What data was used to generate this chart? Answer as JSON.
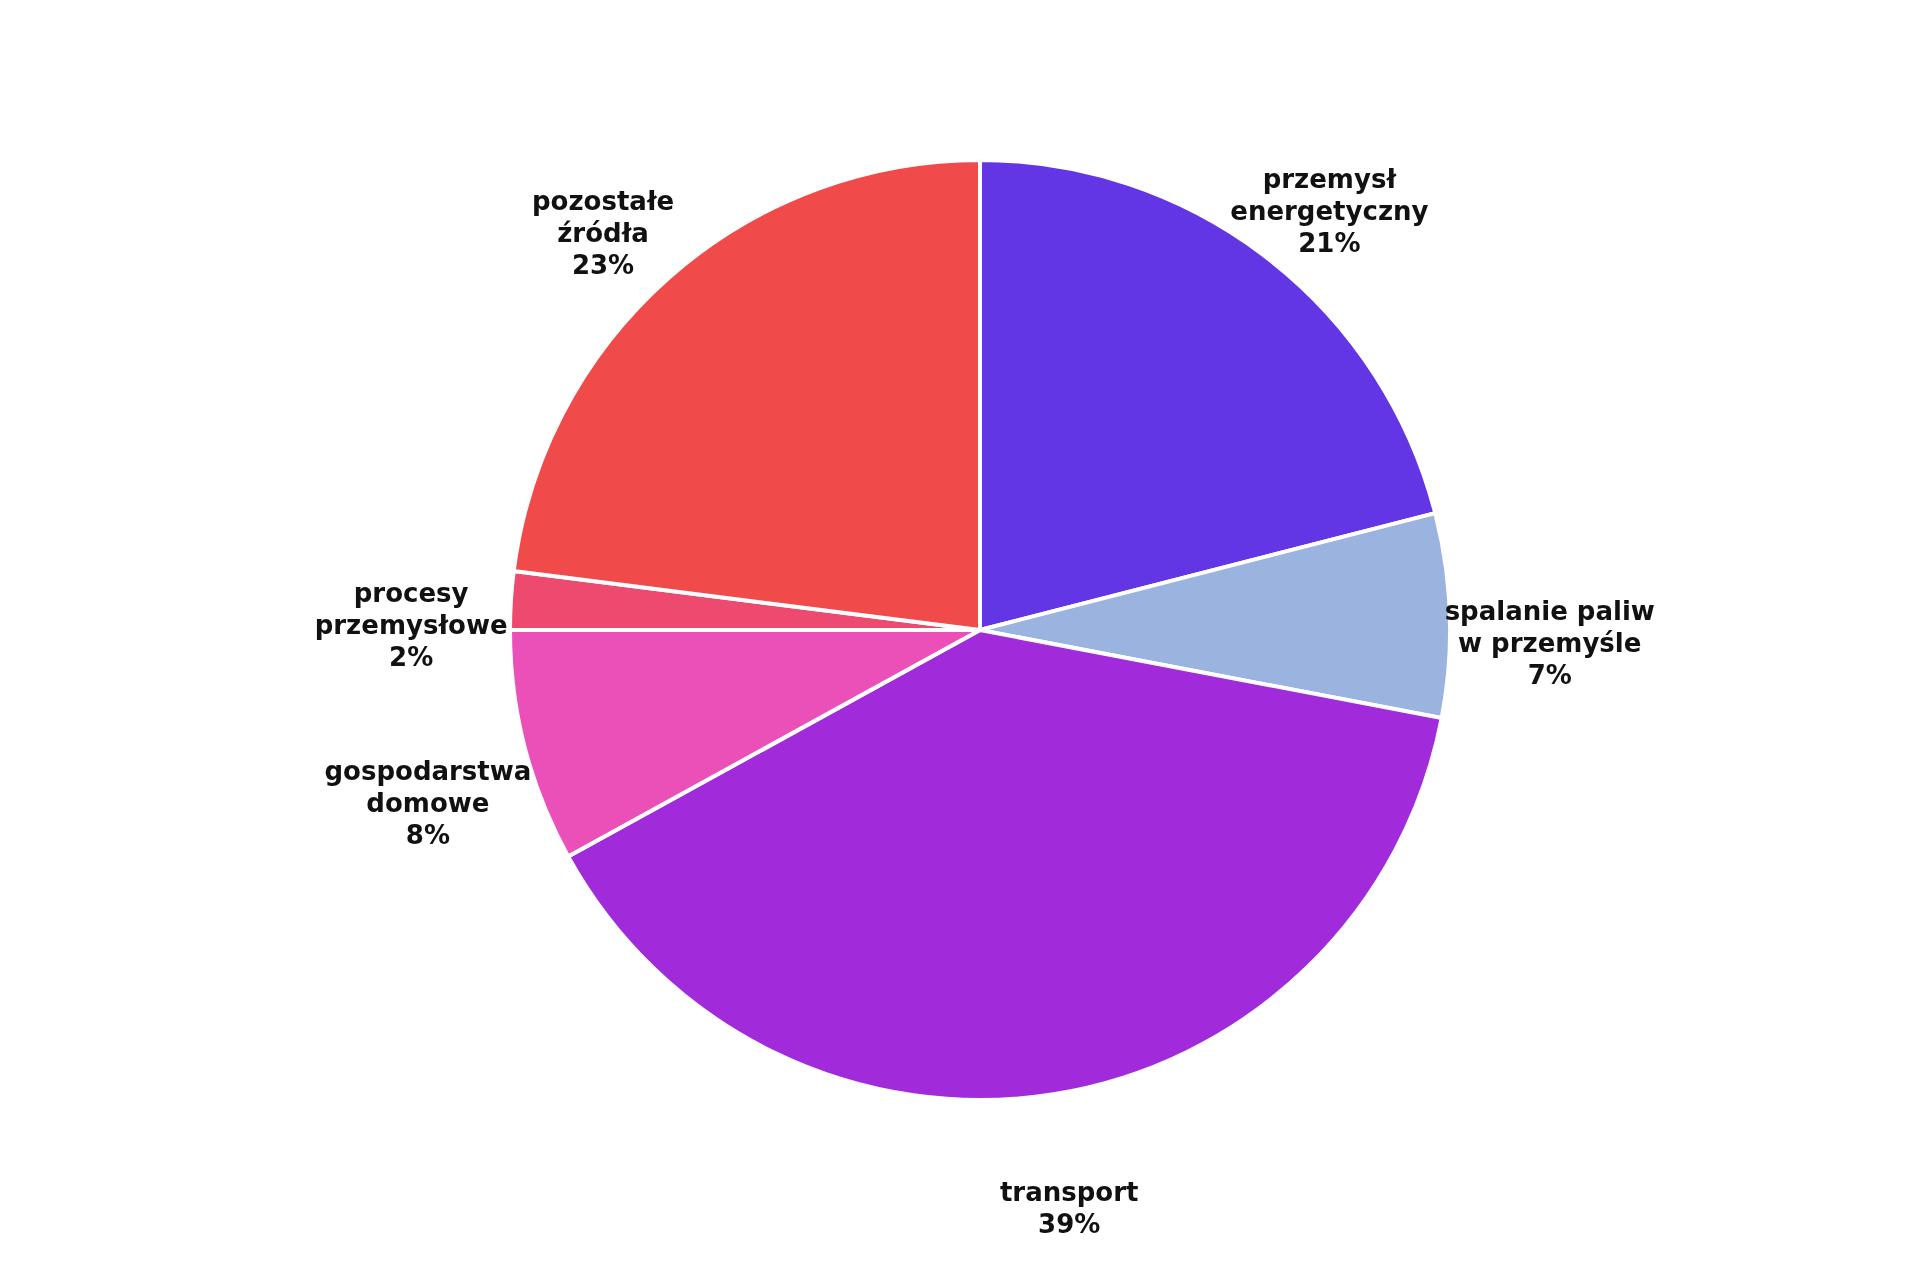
{
  "chart_data": {
    "type": "pie",
    "categories": [
      "przemysł energetyczny",
      "spalanie paliw w przemyśle",
      "transport",
      "gospodarstwa domowe",
      "procesy przemysłowe",
      "pozostałe źródła"
    ],
    "values": [
      21,
      7,
      39,
      8,
      2,
      23
    ],
    "colors": [
      "#6236e4",
      "#9bb3df",
      "#a12bdb",
      "#eb4fb8",
      "#ee4a70",
      "#f04a4a"
    ],
    "value_labels": [
      "21%",
      "7%",
      "39%",
      "8%",
      "2%",
      "23%"
    ],
    "legend": false
  }
}
